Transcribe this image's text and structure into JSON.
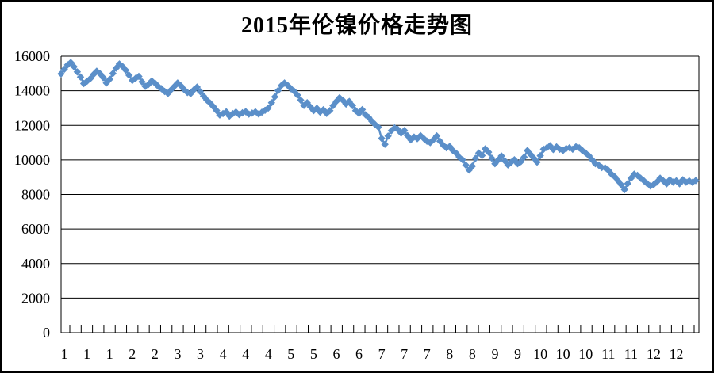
{
  "chart_data": {
    "type": "line",
    "title": "2015年伦镍价格走势图",
    "xlabel": "",
    "ylabel": "",
    "ylim": [
      0,
      16000
    ],
    "y_ticks": [
      0,
      2000,
      4000,
      6000,
      8000,
      10000,
      12000,
      14000,
      16000
    ],
    "x_labels": [
      "1",
      "1",
      "1",
      "2",
      "2",
      "3",
      "3",
      "4",
      "4",
      "4",
      "5",
      "5",
      "6",
      "6",
      "7",
      "7",
      "7",
      "8",
      "8",
      "9",
      "9",
      "10",
      "10",
      "10",
      "11",
      "11",
      "12",
      "12"
    ],
    "label_every_n_points": 7,
    "first_label_point_index": 1,
    "minor_tick_count": 56,
    "grid": "horizontal",
    "legend": "none",
    "marker": "diamond",
    "line_color": "#5b8fc9",
    "axis_color": "#000000",
    "background_color": "#ffffff",
    "series": [
      {
        "name": "伦镍价格",
        "values": [
          14980,
          15250,
          15500,
          15640,
          15390,
          15090,
          14800,
          14420,
          14550,
          14700,
          14940,
          15130,
          14990,
          14760,
          14450,
          14660,
          15000,
          15310,
          15550,
          15400,
          15190,
          14900,
          14600,
          14720,
          14830,
          14520,
          14260,
          14370,
          14570,
          14440,
          14260,
          14120,
          13960,
          13840,
          14060,
          14260,
          14450,
          14290,
          14070,
          13900,
          13830,
          14050,
          14210,
          13950,
          13690,
          13460,
          13290,
          13090,
          12860,
          12600,
          12680,
          12780,
          12540,
          12670,
          12770,
          12620,
          12720,
          12790,
          12650,
          12710,
          12780,
          12660,
          12760,
          12870,
          13000,
          13310,
          13650,
          14010,
          14300,
          14450,
          14310,
          14120,
          13970,
          13750,
          13460,
          13150,
          13310,
          13060,
          12850,
          12990,
          12770,
          12900,
          12690,
          12850,
          13140,
          13380,
          13600,
          13450,
          13230,
          13380,
          13140,
          12850,
          12690,
          12910,
          12610,
          12450,
          12230,
          12050,
          11890,
          11240,
          10900,
          11380,
          11690,
          11850,
          11760,
          11550,
          11700,
          11400,
          11160,
          11320,
          11230,
          11400,
          11240,
          11080,
          11000,
          11170,
          11390,
          11080,
          10850,
          10700,
          10780,
          10540,
          10390,
          10150,
          10010,
          9700,
          9410,
          9640,
          10090,
          10400,
          10250,
          10640,
          10450,
          10100,
          9780,
          10000,
          10230,
          9950,
          9710,
          9860,
          10010,
          9780,
          9900,
          10160,
          10540,
          10320,
          10100,
          9870,
          10240,
          10620,
          10700,
          10820,
          10600,
          10750,
          10620,
          10540,
          10660,
          10700,
          10620,
          10760,
          10700,
          10540,
          10400,
          10240,
          10010,
          9780,
          9700,
          9560,
          9540,
          9400,
          9170,
          9020,
          8790,
          8560,
          8280,
          8630,
          8940,
          9170,
          9100,
          8940,
          8790,
          8630,
          8490,
          8570,
          8720,
          8940,
          8790,
          8620,
          8850,
          8710,
          8790,
          8620,
          8850,
          8710,
          8790,
          8700,
          8800
        ]
      }
    ]
  }
}
